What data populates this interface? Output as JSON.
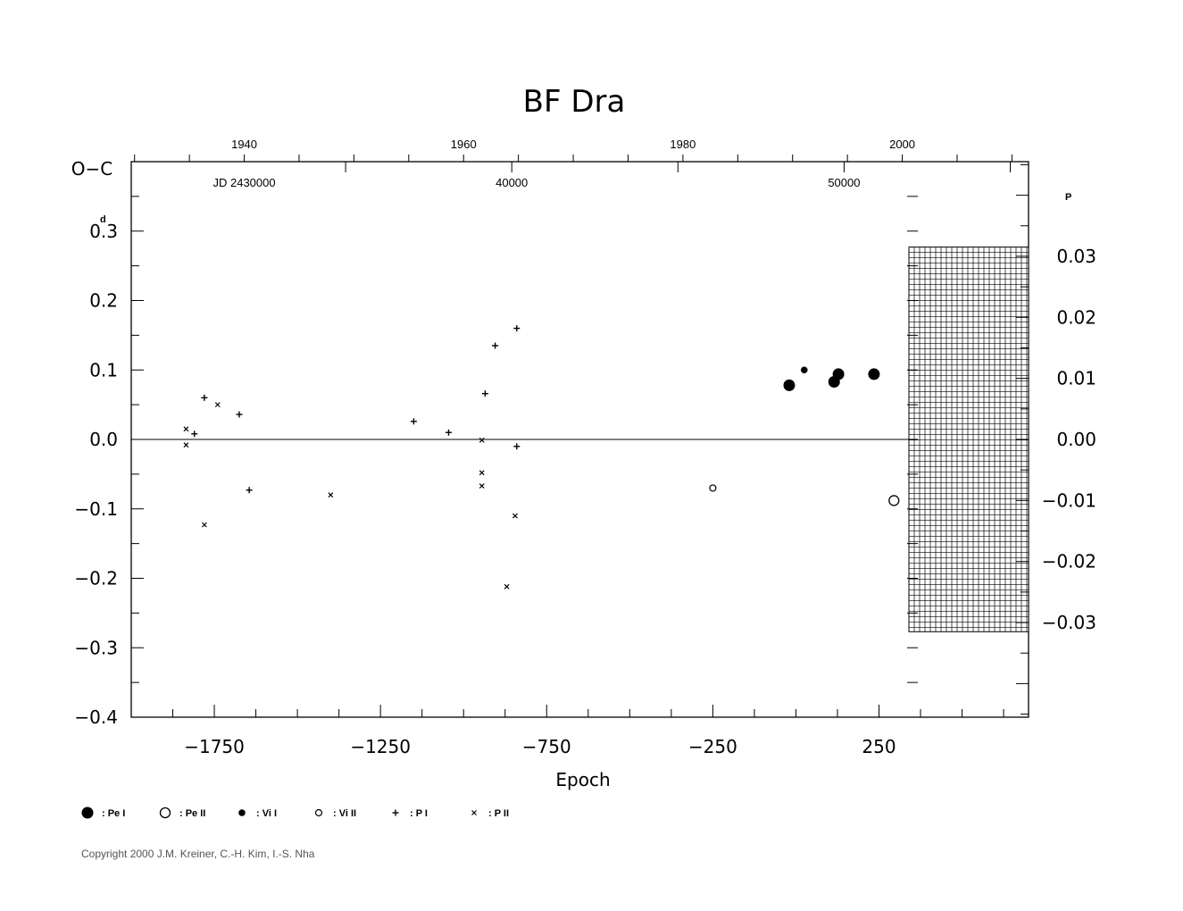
{
  "chart_data": {
    "type": "scatter",
    "title": "BF  Dra",
    "xlabel": "Epoch",
    "ylabel": "O−C",
    "y_unit_label": "d",
    "y2_unit_label": "P",
    "xlim": [
      -2000,
      700
    ],
    "ylim": [
      -0.4,
      0.4
    ],
    "y2lim": [
      -0.0455,
      0.0455
    ],
    "x_ticks": [
      -1750,
      -1250,
      -750,
      -250,
      250
    ],
    "x_tick_labels": [
      "−1750",
      "−1250",
      "−750",
      "−250",
      "250"
    ],
    "y_ticks": [
      -0.4,
      -0.3,
      -0.2,
      -0.1,
      0.0,
      0.1,
      0.2,
      0.3
    ],
    "y_tick_labels": [
      "−0.4",
      "−0.3",
      "−0.2",
      "−0.1",
      "0.0",
      "0.1",
      "0.2",
      "0.3"
    ],
    "y2_ticks": [
      0.03,
      0.02,
      0.01,
      0.0,
      -0.01,
      -0.02,
      -0.03
    ],
    "y2_tick_labels": [
      "0.03",
      "0.02",
      "0.01",
      "0.00",
      "−0.01",
      "−0.02",
      "−0.03"
    ],
    "year_axis": {
      "ticks": [
        {
          "epoch": -1660,
          "label": "1940"
        },
        {
          "epoch": -1000,
          "label": "1960"
        },
        {
          "epoch": -340,
          "label": "1980"
        },
        {
          "epoch": 320,
          "label": "2000"
        }
      ]
    },
    "jd_axis": {
      "prefix_label": "JD  2430000",
      "prefix_epoch": -1660,
      "ticks": [
        {
          "epoch": -855,
          "label": "40000"
        },
        {
          "epoch": 145,
          "label": "50000"
        }
      ]
    },
    "grid_region": {
      "x_from": 340,
      "x_to": 700,
      "y_from": -0.0315,
      "y_to": 0.0315
    },
    "series": [
      {
        "name": "Pe I",
        "marker": "filled-large",
        "points": [
          [
            -20,
            0.078
          ],
          [
            115,
            0.083
          ],
          [
            128,
            0.094
          ],
          [
            235,
            0.094
          ]
        ]
      },
      {
        "name": "Pe II",
        "marker": "open-large",
        "points": [
          [
            295,
            -0.088
          ]
        ]
      },
      {
        "name": "Vi I",
        "marker": "filled-small",
        "points": [
          [
            25,
            0.1
          ]
        ]
      },
      {
        "name": "Vi II",
        "marker": "open-small",
        "points": [
          [
            -250,
            -0.07
          ]
        ]
      },
      {
        "name": "P I",
        "marker": "plus",
        "points": [
          [
            -1810,
            0.008
          ],
          [
            -1780,
            0.06
          ],
          [
            -1675,
            0.036
          ],
          [
            -1645,
            -0.073
          ],
          [
            -1150,
            0.026
          ],
          [
            -1045,
            0.01
          ],
          [
            -935,
            0.066
          ],
          [
            -905,
            0.135
          ],
          [
            -840,
            0.16
          ],
          [
            -840,
            -0.01
          ]
        ]
      },
      {
        "name": "P II",
        "marker": "cross",
        "points": [
          [
            -1835,
            0.015
          ],
          [
            -1835,
            -0.008
          ],
          [
            -1780,
            -0.123
          ],
          [
            -1740,
            0.05
          ],
          [
            -1400,
            -0.08
          ],
          [
            -945,
            -0.001
          ],
          [
            -945,
            -0.048
          ],
          [
            -945,
            -0.067
          ],
          [
            -870,
            -0.212
          ],
          [
            -845,
            -0.11
          ]
        ]
      }
    ],
    "legend": [
      {
        "symbol": "filled-large",
        "label": ": Pe  I"
      },
      {
        "symbol": "open-large",
        "label": ": Pe  II"
      },
      {
        "symbol": "filled-small",
        "label": ": Vi  I"
      },
      {
        "symbol": "open-small",
        "label": ": Vi  II"
      },
      {
        "symbol": "plus",
        "label": ": P  I"
      },
      {
        "symbol": "cross",
        "label": ": P  II"
      }
    ],
    "legend_position": "bottom-left"
  },
  "copyright": "Copyright 2000 J.M. Kreiner, C.-H. Kim, I.-S. Nha"
}
